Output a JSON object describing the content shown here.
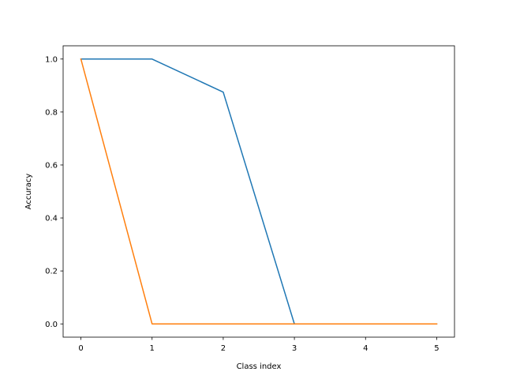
{
  "chart_data": {
    "type": "line",
    "title": "",
    "xlabel": "Class index",
    "ylabel": "Accuracy",
    "x": [
      0,
      1,
      2,
      3,
      4,
      5
    ],
    "xlim": [
      -0.25,
      5.25
    ],
    "ylim": [
      -0.05,
      1.05
    ],
    "xticks": [
      0,
      1,
      2,
      3,
      4,
      5
    ],
    "xtick_labels": [
      "0",
      "1",
      "2",
      "3",
      "4",
      "5"
    ],
    "yticks": [
      0.0,
      0.2,
      0.4,
      0.6,
      0.8,
      1.0
    ],
    "ytick_labels": [
      "0.0",
      "0.2",
      "0.4",
      "0.6",
      "0.8",
      "1.0"
    ],
    "grid": false,
    "legend": "none",
    "series": [
      {
        "color": "#1f77b4",
        "values": [
          1.0,
          1.0,
          0.875,
          0.0,
          0.0,
          0.0
        ]
      },
      {
        "color": "#ff7f0e",
        "values": [
          1.0,
          0.0,
          0.0,
          0.0,
          0.0,
          0.0
        ]
      }
    ]
  }
}
